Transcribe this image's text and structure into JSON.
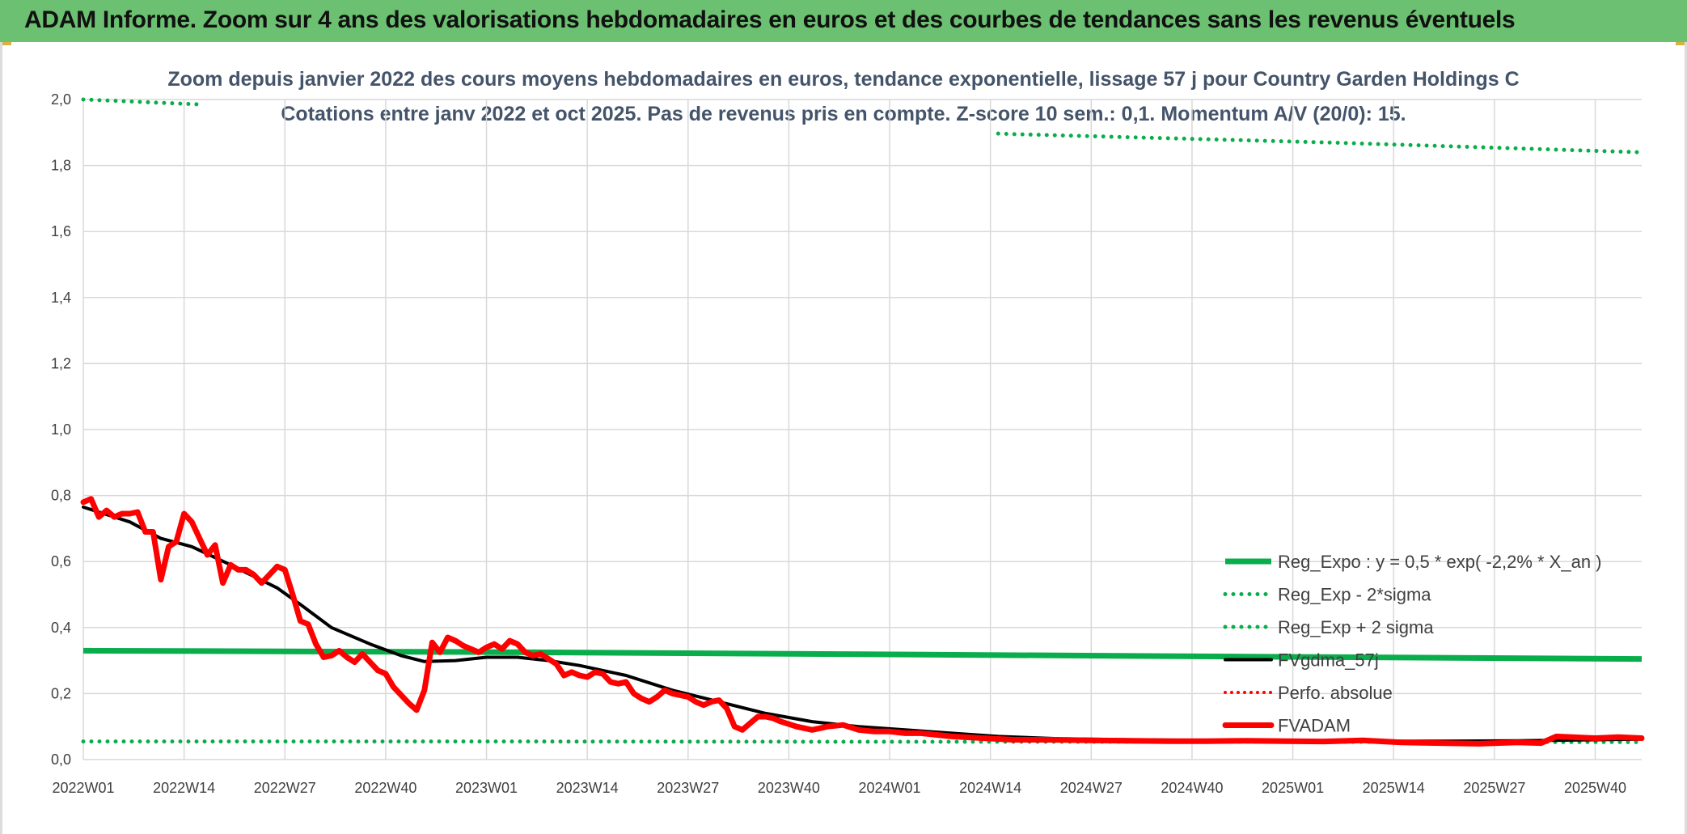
{
  "header": {
    "title": "ADAM Informe. Zoom sur 4 ans des valorisations hebdomadaires en euros et des courbes de tendances sans les revenus éventuels"
  },
  "colors": {
    "banner": "#6cc071",
    "reg_green": "#0aad4b",
    "fvgdma": "#000000",
    "fvadam": "#ff0000",
    "perfo": "#ff0000",
    "grid": "#d9d9d9"
  },
  "chart_data": {
    "type": "line",
    "title": "Zoom depuis janvier 2022 des cours moyens hebdomadaires en euros, tendance exponentielle, lissage 57 j pour Country Garden Holdings C",
    "subtitle": "Cotations entre janv 2022 et oct 2025. Pas de revenus pris en compte. Z-score 10 sem.: 0,1. Momentum A/V (20/0): 15.",
    "xlabel": "",
    "ylabel": "",
    "ylim": [
      0,
      2.0
    ],
    "yticks": [
      "0,0",
      "0,2",
      "0,4",
      "0,6",
      "0,8",
      "1,0",
      "1,2",
      "1,4",
      "1,6",
      "1,8",
      "2,0"
    ],
    "x_tick_labels": [
      "2022W01",
      "2022W14",
      "2022W27",
      "2022W40",
      "2023W01",
      "2023W14",
      "2023W27",
      "2023W40",
      "2024W01",
      "2024W14",
      "2024W27",
      "2024W40",
      "2025W01",
      "2025W14",
      "2025W27",
      "2025W40"
    ],
    "x_tick_positions": [
      0,
      13,
      26,
      39,
      52,
      65,
      78,
      91,
      104,
      117,
      130,
      143,
      156,
      169,
      182,
      195
    ],
    "x_range": [
      0,
      201
    ],
    "grid": true,
    "legend_position": "bottom-right",
    "series": [
      {
        "name": "Reg_Expo : y = 0,5 * exp( -2,2% *  X_an )",
        "style": "solid-thick",
        "x": [
          0,
          50,
          100,
          150,
          201
        ],
        "values": [
          0.33,
          0.326,
          0.319,
          0.312,
          0.305
        ]
      },
      {
        "name": "Reg_Exp - 2*sigma",
        "style": "dotted",
        "x": [
          0,
          50,
          100,
          150,
          201
        ],
        "values": [
          0.055,
          0.055,
          0.054,
          0.054,
          0.053
        ]
      },
      {
        "name": "Reg_Exp + 2 sigma",
        "style": "dotted",
        "x": [
          0,
          15,
          120,
          160,
          201
        ],
        "values": [
          2.0,
          1.985,
          1.895,
          1.87,
          1.84
        ]
      },
      {
        "name": "FVgdma_57j",
        "style": "solid",
        "x": [
          0,
          6,
          10,
          14,
          19,
          25,
          28,
          32,
          37,
          41,
          44,
          48,
          52,
          56,
          60,
          64,
          70,
          76,
          82,
          88,
          94,
          100,
          106,
          112,
          118,
          126,
          135,
          145,
          155,
          165,
          175,
          185,
          195,
          201
        ],
        "values": [
          0.765,
          0.72,
          0.67,
          0.645,
          0.59,
          0.52,
          0.47,
          0.4,
          0.35,
          0.315,
          0.297,
          0.3,
          0.31,
          0.31,
          0.3,
          0.285,
          0.255,
          0.21,
          0.175,
          0.14,
          0.115,
          0.1,
          0.09,
          0.08,
          0.07,
          0.063,
          0.06,
          0.058,
          0.057,
          0.056,
          0.056,
          0.057,
          0.06,
          0.062
        ]
      },
      {
        "name": "Perfo. absolue",
        "style": "dotted",
        "x": [],
        "values": []
      },
      {
        "name": "FVADAM",
        "style": "solid-thick",
        "x": [
          0,
          1,
          2,
          3,
          4,
          5,
          6,
          7,
          8,
          9,
          10,
          11,
          12,
          13,
          14,
          15,
          16,
          17,
          18,
          19,
          20,
          21,
          22,
          23,
          24,
          25,
          26,
          27,
          28,
          29,
          30,
          31,
          32,
          33,
          34,
          35,
          36,
          37,
          38,
          39,
          40,
          41,
          42,
          43,
          44,
          45,
          46,
          47,
          48,
          49,
          50,
          51,
          52,
          53,
          54,
          55,
          56,
          57,
          58,
          59,
          60,
          61,
          62,
          63,
          64,
          65,
          66,
          67,
          68,
          69,
          70,
          71,
          72,
          73,
          74,
          75,
          76,
          77,
          78,
          79,
          80,
          81,
          82,
          83,
          84,
          85,
          86,
          87,
          88,
          89,
          90,
          92,
          94,
          96,
          98,
          100,
          102,
          104,
          106,
          108,
          110,
          112,
          116,
          120,
          125,
          130,
          135,
          140,
          145,
          150,
          155,
          160,
          165,
          170,
          175,
          180,
          185,
          188,
          190,
          192,
          195,
          198,
          201
        ],
        "values": [
          0.78,
          0.79,
          0.735,
          0.755,
          0.735,
          0.745,
          0.745,
          0.75,
          0.69,
          0.69,
          0.545,
          0.645,
          0.66,
          0.745,
          0.72,
          0.67,
          0.62,
          0.65,
          0.535,
          0.59,
          0.575,
          0.575,
          0.56,
          0.535,
          0.56,
          0.585,
          0.575,
          0.5,
          0.42,
          0.41,
          0.35,
          0.31,
          0.315,
          0.33,
          0.31,
          0.295,
          0.32,
          0.295,
          0.27,
          0.26,
          0.22,
          0.195,
          0.17,
          0.15,
          0.21,
          0.355,
          0.325,
          0.37,
          0.36,
          0.345,
          0.335,
          0.325,
          0.34,
          0.35,
          0.335,
          0.36,
          0.35,
          0.325,
          0.315,
          0.32,
          0.305,
          0.29,
          0.255,
          0.265,
          0.255,
          0.25,
          0.265,
          0.26,
          0.235,
          0.23,
          0.235,
          0.2,
          0.185,
          0.175,
          0.19,
          0.21,
          0.2,
          0.195,
          0.19,
          0.175,
          0.165,
          0.175,
          0.18,
          0.155,
          0.1,
          0.09,
          0.11,
          0.13,
          0.13,
          0.125,
          0.115,
          0.1,
          0.09,
          0.1,
          0.105,
          0.09,
          0.085,
          0.085,
          0.08,
          0.08,
          0.075,
          0.07,
          0.065,
          0.06,
          0.06,
          0.058,
          0.057,
          0.056,
          0.056,
          0.057,
          0.056,
          0.055,
          0.058,
          0.052,
          0.05,
          0.048,
          0.052,
          0.05,
          0.07,
          0.068,
          0.065,
          0.068,
          0.065
        ]
      }
    ]
  }
}
